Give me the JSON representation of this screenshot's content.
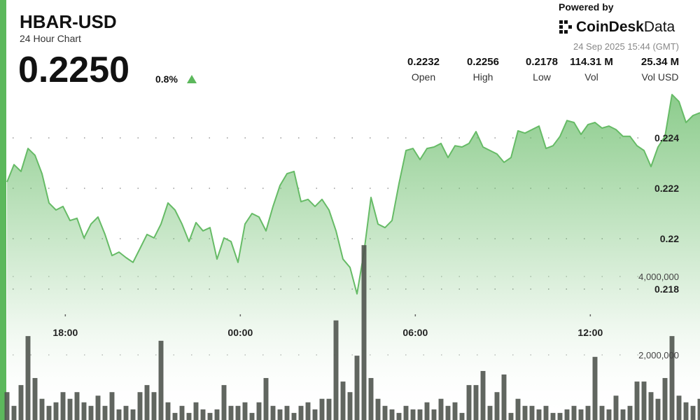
{
  "header": {
    "title": "HBAR-USD",
    "subtitle": "24 Hour Chart",
    "price": "0.2250",
    "change": "0.8%",
    "powered_by": "Powered by",
    "brand": "CoinDesk",
    "brand_suffix": "Data",
    "timestamp": "24 Sep 2025 15:44 (GMT)"
  },
  "stats": [
    {
      "value": "0.2232",
      "label": "Open"
    },
    {
      "value": "0.2256",
      "label": "High"
    },
    {
      "value": "0.2178",
      "label": "Low"
    },
    {
      "value": "114.31 M",
      "label": "Vol"
    },
    {
      "value": "25.34 M",
      "label": "Vol USD"
    }
  ],
  "chart_data": {
    "type": "line",
    "x": [
      16,
      16.24,
      16.48,
      16.72,
      16.96,
      17.2,
      17.44,
      17.68,
      17.92,
      18.16,
      18.4,
      18.64,
      18.88,
      19.12,
      19.36,
      19.6,
      19.84,
      20.08,
      20.32,
      20.56,
      20.8,
      21.04,
      21.28,
      21.52,
      21.76,
      22,
      22.24,
      22.48,
      22.72,
      22.96,
      23.2,
      23.44,
      23.68,
      23.92,
      24.16,
      24.4,
      24.64,
      24.88,
      25.12,
      25.36,
      25.6,
      25.84,
      26.08,
      26.32,
      26.56,
      26.8,
      27.04,
      27.28,
      27.52,
      27.76,
      28,
      28.24,
      28.48,
      28.72,
      28.96,
      29.2,
      29.44,
      29.68,
      29.92,
      30.16,
      30.4,
      30.64,
      30.88,
      31.12,
      31.36,
      31.6,
      31.84,
      32.08,
      32.32,
      32.56,
      32.8,
      33.04,
      33.28,
      33.52,
      33.76,
      34,
      34.24,
      34.48,
      34.72,
      34.96,
      35.2,
      35.44,
      35.68,
      35.92,
      36.16,
      36.4,
      36.64,
      36.88,
      37.12,
      37.36,
      37.6,
      37.84,
      38.08,
      38.32,
      38.56,
      38.8,
      39.04,
      39.28,
      39.52,
      39.76
    ],
    "xlim": [
      16,
      39.76
    ],
    "xticks": [
      {
        "value": 18,
        "label": "18:00"
      },
      {
        "value": 24,
        "label": "00:00"
      },
      {
        "value": 30,
        "label": "06:00"
      },
      {
        "value": 36,
        "label": "12:00"
      }
    ],
    "ylim": [
      0.2175,
      0.2259
    ],
    "yticks": [
      0.224,
      0.222,
      0.22,
      0.218
    ],
    "y2lim": [
      0,
      8000000
    ],
    "y2ticks": [
      {
        "value": 2000000,
        "label": "2,000,000"
      },
      {
        "value": 4000000,
        "label": "4,000,000"
      }
    ],
    "grid": true,
    "series": [
      {
        "color": "#66bb66",
        "values": [
          0.22225,
          0.22294,
          0.22267,
          0.22358,
          0.22331,
          0.22258,
          0.22142,
          0.22114,
          0.22128,
          0.22072,
          0.22081,
          0.22003,
          0.22058,
          0.22086,
          0.22017,
          0.21933,
          0.21947,
          0.21925,
          0.21906,
          0.21961,
          0.22017,
          0.22003,
          0.22058,
          0.22142,
          0.22114,
          0.22058,
          0.21989,
          0.22064,
          0.22031,
          0.22044,
          0.21919,
          0.22003,
          0.21989,
          0.21906,
          0.22058,
          0.221,
          0.22086,
          0.22031,
          0.22128,
          0.22211,
          0.22258,
          0.22267,
          0.22147,
          0.22156,
          0.22128,
          0.22156,
          0.22114,
          0.22031,
          0.21919,
          0.21886,
          0.21781,
          0.21947,
          0.22164,
          0.22058,
          0.22044,
          0.22072,
          0.22219,
          0.2235,
          0.22358,
          0.22314,
          0.22358,
          0.22364,
          0.22378,
          0.22322,
          0.22369,
          0.22364,
          0.22378,
          0.22425,
          0.22364,
          0.2235,
          0.22336,
          0.22303,
          0.22322,
          0.22428,
          0.22419,
          0.22433,
          0.22447,
          0.22358,
          0.22369,
          0.22406,
          0.22469,
          0.22461,
          0.22414,
          0.22453,
          0.22461,
          0.22439,
          0.22447,
          0.22433,
          0.22406,
          0.22406,
          0.22369,
          0.2235,
          0.22286,
          0.22364,
          0.22406,
          0.22572,
          0.22544,
          0.22461,
          0.22489,
          0.225
        ]
      },
      {
        "type": "bar",
        "axis": "y2",
        "color": "#50554f",
        "values": [
          1050000,
          700000,
          1230000,
          2480000,
          1410000,
          880000,
          700000,
          790000,
          1050000,
          880000,
          1050000,
          790000,
          700000,
          960000,
          700000,
          1050000,
          610000,
          700000,
          610000,
          1050000,
          1230000,
          1050000,
          2360000,
          790000,
          520000,
          700000,
          520000,
          790000,
          610000,
          520000,
          610000,
          1230000,
          700000,
          700000,
          790000,
          520000,
          790000,
          1410000,
          700000,
          610000,
          700000,
          520000,
          700000,
          790000,
          610000,
          880000,
          880000,
          2880000,
          1320000,
          1050000,
          1980000,
          4800000,
          1410000,
          880000,
          700000,
          610000,
          520000,
          700000,
          610000,
          610000,
          790000,
          610000,
          880000,
          700000,
          790000,
          520000,
          1230000,
          1230000,
          1590000,
          700000,
          1050000,
          1500000,
          520000,
          880000,
          700000,
          700000,
          610000,
          700000,
          520000,
          520000,
          610000,
          700000,
          610000,
          700000,
          1950000,
          700000,
          610000,
          960000,
          610000,
          700000,
          1320000,
          1320000,
          1050000,
          880000,
          1410000,
          2480000,
          960000,
          790000,
          700000,
          880000
        ]
      }
    ]
  }
}
